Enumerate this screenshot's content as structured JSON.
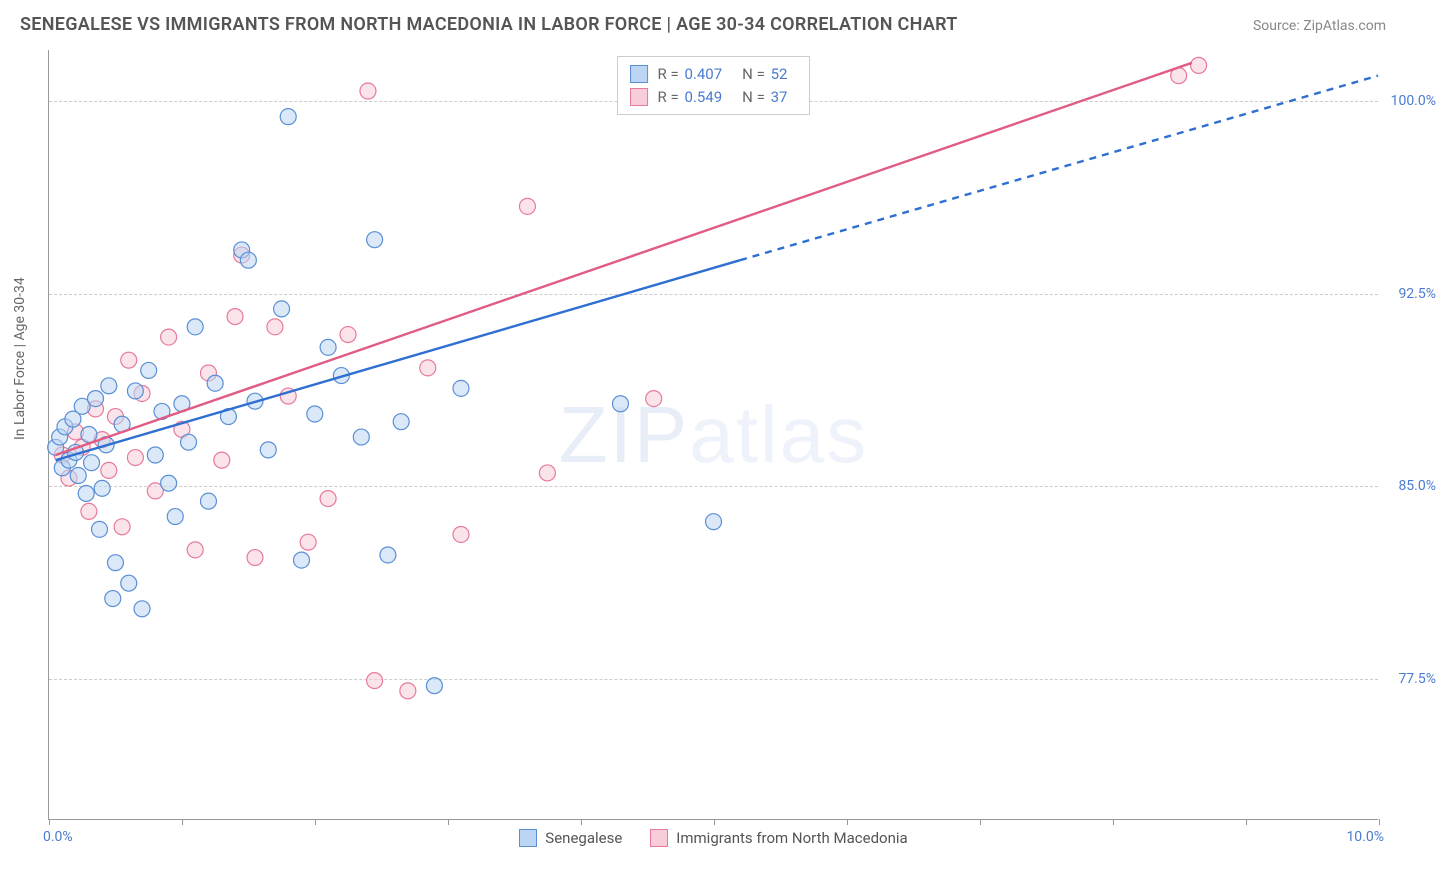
{
  "header": {
    "title": "SENEGALESE VS IMMIGRANTS FROM NORTH MACEDONIA IN LABOR FORCE | AGE 30-34 CORRELATION CHART",
    "source": "Source: ZipAtlas.com"
  },
  "chart": {
    "type": "scatter",
    "ylabel": "In Labor Force | Age 30-34",
    "xlim": [
      0,
      10
    ],
    "ylim": [
      72,
      102
    ],
    "x_ticks": [
      0,
      1,
      2,
      3,
      4,
      5,
      6,
      7,
      8,
      9,
      10
    ],
    "x_tick_label_left": "0.0%",
    "x_tick_label_right": "10.0%",
    "y_gridlines": [
      77.5,
      85.0,
      92.5,
      100.0
    ],
    "y_tick_labels": [
      "77.5%",
      "85.0%",
      "92.5%",
      "100.0%"
    ],
    "grid_color": "#cccccc",
    "axis_color": "#999999",
    "background_color": "#ffffff",
    "tick_label_color": "#4a7bd0",
    "axis_label_color": "#666666",
    "watermark": "ZIPatlas"
  },
  "series": {
    "senegalese": {
      "label": "Senegalese",
      "color_fill": "#bcd5f2",
      "color_stroke": "#5a8fd6",
      "line_color": "#2e6fd1",
      "marker_radius": 8,
      "fill_opacity": 0.55,
      "R": "0.407",
      "N": "52",
      "trend": {
        "x1": 0.05,
        "y1": 86.0,
        "x2": 5.2,
        "y2": 93.8,
        "x2_ext": 10.0,
        "y2_ext": 101.0,
        "dashed_from_x": 5.2
      },
      "points": [
        [
          0.05,
          86.5
        ],
        [
          0.08,
          86.9
        ],
        [
          0.1,
          85.7
        ],
        [
          0.12,
          87.3
        ],
        [
          0.15,
          86.0
        ],
        [
          0.18,
          87.6
        ],
        [
          0.2,
          86.3
        ],
        [
          0.22,
          85.4
        ],
        [
          0.25,
          88.1
        ],
        [
          0.28,
          84.7
        ],
        [
          0.3,
          87.0
        ],
        [
          0.32,
          85.9
        ],
        [
          0.35,
          88.4
        ],
        [
          0.38,
          83.3
        ],
        [
          0.4,
          84.9
        ],
        [
          0.43,
          86.6
        ],
        [
          0.45,
          88.9
        ],
        [
          0.48,
          80.6
        ],
        [
          0.5,
          82.0
        ],
        [
          0.55,
          87.4
        ],
        [
          0.6,
          81.2
        ],
        [
          0.65,
          88.7
        ],
        [
          0.7,
          80.2
        ],
        [
          0.75,
          89.5
        ],
        [
          0.8,
          86.2
        ],
        [
          0.85,
          87.9
        ],
        [
          0.9,
          85.1
        ],
        [
          0.95,
          83.8
        ],
        [
          1.0,
          88.2
        ],
        [
          1.05,
          86.7
        ],
        [
          1.1,
          91.2
        ],
        [
          1.2,
          84.4
        ],
        [
          1.25,
          89.0
        ],
        [
          1.35,
          87.7
        ],
        [
          1.45,
          94.2
        ],
        [
          1.5,
          93.8
        ],
        [
          1.55,
          88.3
        ],
        [
          1.65,
          86.4
        ],
        [
          1.75,
          91.9
        ],
        [
          1.8,
          99.4
        ],
        [
          1.9,
          82.1
        ],
        [
          2.0,
          87.8
        ],
        [
          2.1,
          90.4
        ],
        [
          2.2,
          89.3
        ],
        [
          2.35,
          86.9
        ],
        [
          2.45,
          94.6
        ],
        [
          2.55,
          82.3
        ],
        [
          2.65,
          87.5
        ],
        [
          2.9,
          77.2
        ],
        [
          3.1,
          88.8
        ],
        [
          4.3,
          88.2
        ],
        [
          5.0,
          83.6
        ]
      ]
    },
    "north_macedonia": {
      "label": "Immigrants from North Macedonia",
      "color_fill": "#f6cdd8",
      "color_stroke": "#e77a9a",
      "line_color": "#e15b82",
      "marker_radius": 8,
      "fill_opacity": 0.55,
      "R": "0.549",
      "N": "37",
      "trend": {
        "x1": 0.05,
        "y1": 86.2,
        "x2": 8.6,
        "y2": 101.5
      },
      "points": [
        [
          0.1,
          86.2
        ],
        [
          0.15,
          85.3
        ],
        [
          0.2,
          87.1
        ],
        [
          0.25,
          86.5
        ],
        [
          0.3,
          84.0
        ],
        [
          0.35,
          88.0
        ],
        [
          0.4,
          86.8
        ],
        [
          0.45,
          85.6
        ],
        [
          0.5,
          87.7
        ],
        [
          0.55,
          83.4
        ],
        [
          0.6,
          89.9
        ],
        [
          0.65,
          86.1
        ],
        [
          0.7,
          88.6
        ],
        [
          0.8,
          84.8
        ],
        [
          0.9,
          90.8
        ],
        [
          1.0,
          87.2
        ],
        [
          1.1,
          82.5
        ],
        [
          1.2,
          89.4
        ],
        [
          1.3,
          86.0
        ],
        [
          1.4,
          91.6
        ],
        [
          1.45,
          94.0
        ],
        [
          1.55,
          82.2
        ],
        [
          1.7,
          91.2
        ],
        [
          1.8,
          88.5
        ],
        [
          1.95,
          82.8
        ],
        [
          2.1,
          84.5
        ],
        [
          2.25,
          90.9
        ],
        [
          2.4,
          100.4
        ],
        [
          2.45,
          77.4
        ],
        [
          2.7,
          77.0
        ],
        [
          2.85,
          89.6
        ],
        [
          3.1,
          83.1
        ],
        [
          3.6,
          95.9
        ],
        [
          3.75,
          85.5
        ],
        [
          4.55,
          88.4
        ],
        [
          8.5,
          101.0
        ],
        [
          8.65,
          101.4
        ]
      ]
    }
  },
  "legend_top": {
    "r_label": "R =",
    "n_label": "N ="
  },
  "legend_bottom": {
    "items": [
      "senegalese",
      "north_macedonia"
    ]
  }
}
